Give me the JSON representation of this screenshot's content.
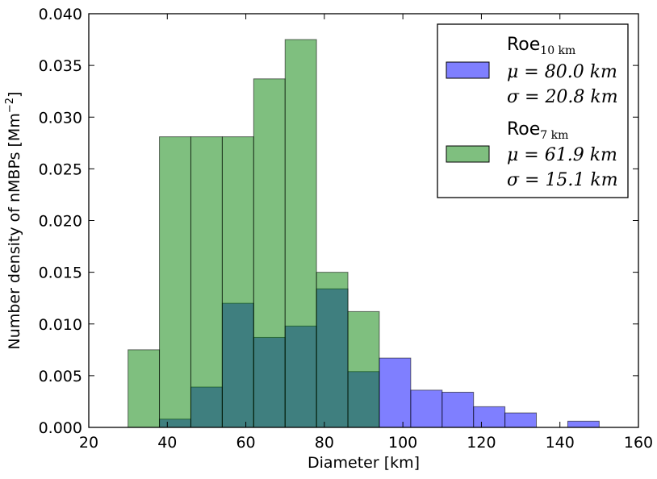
{
  "chart_data": {
    "type": "bar",
    "subtype": "histogram",
    "xlabel": "Diameter [km]",
    "ylabel": "Number density of nMBPs [Mm",
    "ylabel_sup": "−2",
    "ylabel_close": "]",
    "xlim": [
      20,
      160
    ],
    "ylim": [
      0,
      0.04
    ],
    "xticks": [
      "20",
      "40",
      "60",
      "80",
      "100",
      "120",
      "140",
      "160"
    ],
    "yticks": [
      "0.000",
      "0.005",
      "0.010",
      "0.015",
      "0.020",
      "0.025",
      "0.030",
      "0.035",
      "0.040"
    ],
    "grid": false,
    "legend_position": "top-right",
    "series": [
      {
        "name": "Roe",
        "name_sub": "10 km",
        "mu_label": "μ = 80.0 km",
        "sigma_label": "σ = 20.8 km",
        "color": "#7f7fff",
        "bins": [
          {
            "x0": 38,
            "x1": 46,
            "value": 0.0008
          },
          {
            "x0": 46,
            "x1": 54,
            "value": 0.0039
          },
          {
            "x0": 54,
            "x1": 62,
            "value": 0.012
          },
          {
            "x0": 62,
            "x1": 70,
            "value": 0.0087
          },
          {
            "x0": 70,
            "x1": 78,
            "value": 0.0098
          },
          {
            "x0": 78,
            "x1": 86,
            "value": 0.0134
          },
          {
            "x0": 86,
            "x1": 94,
            "value": 0.0054
          },
          {
            "x0": 94,
            "x1": 102,
            "value": 0.0067
          },
          {
            "x0": 102,
            "x1": 110,
            "value": 0.0036
          },
          {
            "x0": 110,
            "x1": 118,
            "value": 0.0034
          },
          {
            "x0": 118,
            "x1": 126,
            "value": 0.002
          },
          {
            "x0": 126,
            "x1": 134,
            "value": 0.0014
          },
          {
            "x0": 134,
            "x1": 142,
            "value": 0.0
          },
          {
            "x0": 142,
            "x1": 150,
            "value": 0.0006
          },
          {
            "x0": 150,
            "x1": 158,
            "value": 0.0
          }
        ]
      },
      {
        "name": "Roe",
        "name_sub": "7 km",
        "mu_label": "μ = 61.9 km",
        "sigma_label": "σ = 15.1 km",
        "color": "#7fbf7f",
        "bins": [
          {
            "x0": 30,
            "x1": 38,
            "value": 0.0075
          },
          {
            "x0": 38,
            "x1": 46,
            "value": 0.0281
          },
          {
            "x0": 46,
            "x1": 54,
            "value": 0.0281
          },
          {
            "x0": 54,
            "x1": 62,
            "value": 0.0281
          },
          {
            "x0": 62,
            "x1": 70,
            "value": 0.0337
          },
          {
            "x0": 70,
            "x1": 78,
            "value": 0.0375
          },
          {
            "x0": 78,
            "x1": 86,
            "value": 0.015
          },
          {
            "x0": 86,
            "x1": 94,
            "value": 0.0112
          }
        ]
      }
    ],
    "overlap_color": "#3f7f7f"
  }
}
